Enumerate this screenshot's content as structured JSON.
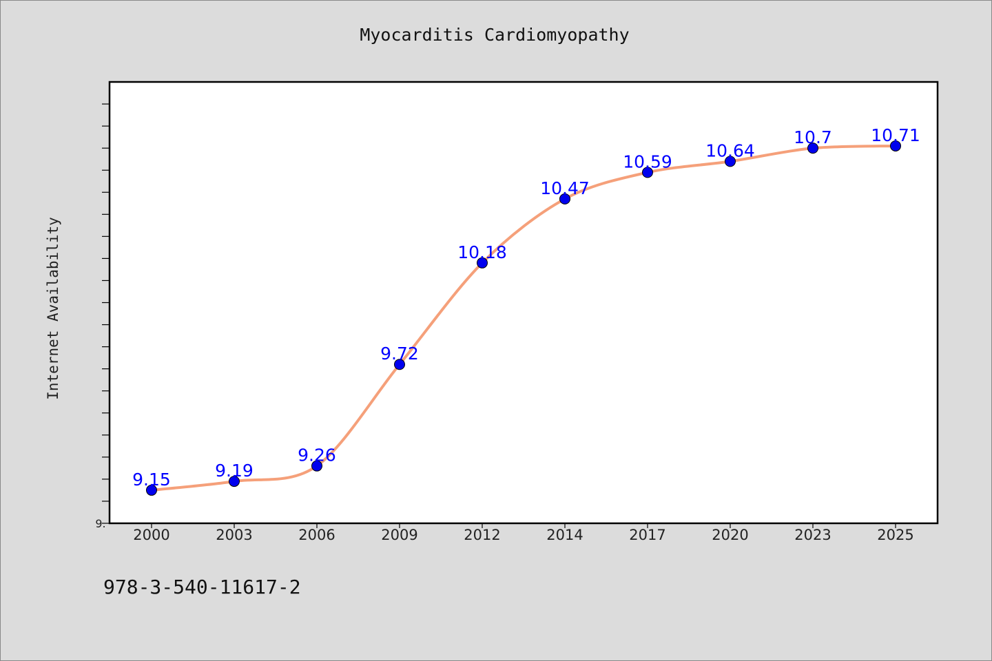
{
  "chart_data": {
    "type": "line",
    "title": "Myocarditis Cardiomyopathy",
    "ylabel": "Internet Availability",
    "xlabel": "",
    "x": [
      "2000",
      "2003",
      "2006",
      "2009",
      "2012",
      "2014",
      "2017",
      "2020",
      "2023",
      "2025"
    ],
    "series": [
      {
        "values": [
          9.15,
          9.19,
          9.26,
          9.72,
          10.18,
          10.47,
          10.59,
          10.64,
          10.7,
          10.71
        ],
        "labels": [
          "9.15",
          "9.19",
          "9.26",
          "9.72",
          "10.18",
          "10.47",
          "10.59",
          "10.64",
          "10.7",
          "10.71"
        ],
        "line_color": "#f5a07a",
        "marker_color": "#0000ee"
      }
    ],
    "y_tick_label": "9.",
    "ylim": [
      9.0,
      11.0
    ],
    "grid": false,
    "legend": "none"
  },
  "footer": {
    "identifier": "978-3-540-11617-2"
  },
  "colors": {
    "background": "#dcdcdc",
    "plot_background": "#ffffff",
    "data_label": "#0000ff"
  }
}
